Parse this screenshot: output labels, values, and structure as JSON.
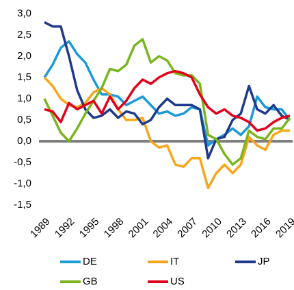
{
  "chart_data": {
    "type": "line",
    "x": [
      1989,
      1990,
      1991,
      1992,
      1993,
      1994,
      1995,
      1996,
      1997,
      1998,
      1999,
      2000,
      2001,
      2002,
      2003,
      2004,
      2005,
      2006,
      2007,
      2008,
      2009,
      2010,
      2011,
      2012,
      2013,
      2014,
      2015,
      2016,
      2017,
      2018,
      2019
    ],
    "xlim": [
      1989,
      2019
    ],
    "xticks": [
      1989,
      1992,
      1995,
      1998,
      2001,
      2004,
      2007,
      2010,
      2013,
      2016,
      2019
    ],
    "ylim": [
      -1.5,
      3.0
    ],
    "yticks": [
      {
        "value": -1.5,
        "label": "-1,5"
      },
      {
        "value": -1.0,
        "label": "-1,0"
      },
      {
        "value": -0.5,
        "label": "-0,5"
      },
      {
        "value": 0.0,
        "label": "0,0"
      },
      {
        "value": 0.5,
        "label": "0,5"
      },
      {
        "value": 1.0,
        "label": "1,0"
      },
      {
        "value": 1.5,
        "label": "1,5"
      },
      {
        "value": 2.0,
        "label": "2,0"
      },
      {
        "value": 2.5,
        "label": "2,5"
      },
      {
        "value": 3.0,
        "label": "3,0"
      }
    ],
    "series": [
      {
        "name": "DE",
        "color": "#1a9ad6",
        "values": [
          1.5,
          1.8,
          2.2,
          2.35,
          2.05,
          1.85,
          1.45,
          1.1,
          1.1,
          1.05,
          0.85,
          0.95,
          1.05,
          0.85,
          0.65,
          0.7,
          0.6,
          0.65,
          0.8,
          0.75,
          -0.1,
          0.05,
          0.15,
          0.3,
          0.15,
          0.35,
          1.05,
          0.8,
          0.75,
          0.75,
          0.5
        ]
      },
      {
        "name": "IT",
        "color": "#f9a51a",
        "values": [
          1.5,
          1.3,
          1.0,
          0.85,
          0.8,
          0.9,
          1.15,
          1.25,
          1.1,
          0.75,
          0.5,
          0.5,
          0.55,
          0.0,
          -0.15,
          -0.1,
          -0.55,
          -0.6,
          -0.4,
          -0.4,
          -1.1,
          -0.75,
          -0.55,
          -0.75,
          -0.55,
          0.1,
          -0.1,
          -0.2,
          0.15,
          0.25,
          0.25
        ]
      },
      {
        "name": "JP",
        "color": "#1f3a8c",
        "values": [
          2.8,
          2.7,
          2.7,
          2.0,
          1.2,
          0.75,
          0.55,
          0.6,
          0.75,
          0.55,
          0.7,
          0.65,
          0.4,
          0.5,
          0.8,
          1.0,
          0.85,
          0.85,
          0.85,
          0.75,
          -0.4,
          0.05,
          0.1,
          0.5,
          0.65,
          1.3,
          0.75,
          0.65,
          0.85,
          0.6,
          0.5
        ]
      },
      {
        "name": "GB",
        "color": "#7ab51d",
        "values": [
          1.0,
          0.6,
          0.2,
          0.0,
          0.3,
          0.65,
          0.95,
          1.25,
          1.7,
          1.65,
          1.8,
          2.25,
          2.4,
          1.85,
          2.0,
          1.9,
          1.6,
          1.55,
          1.55,
          1.35,
          0.15,
          0.05,
          -0.3,
          -0.55,
          -0.4,
          0.25,
          0.1,
          0.05,
          0.3,
          0.3,
          0.55
        ]
      },
      {
        "name": "US",
        "color": "#e2001a",
        "values": [
          0.75,
          0.7,
          0.45,
          0.9,
          0.75,
          0.85,
          0.95,
          0.65,
          1.05,
          0.75,
          0.95,
          1.25,
          1.45,
          1.35,
          1.5,
          1.6,
          1.65,
          1.6,
          1.5,
          1.1,
          0.8,
          0.65,
          0.75,
          0.6,
          0.55,
          0.45,
          0.25,
          0.3,
          0.45,
          0.55,
          0.6
        ]
      }
    ]
  }
}
